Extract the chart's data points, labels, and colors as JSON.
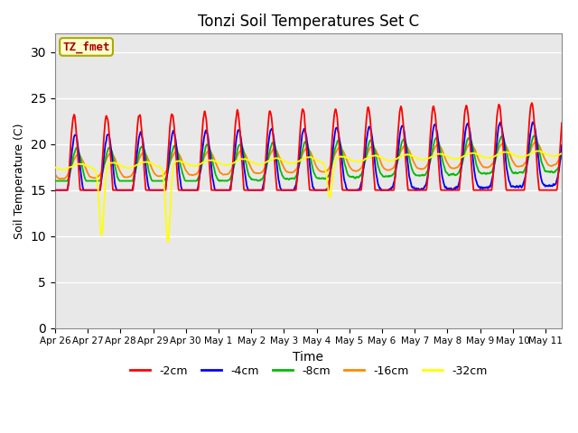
{
  "title": "Tonzi Soil Temperatures Set C",
  "xlabel": "Time",
  "ylabel": "Soil Temperature (C)",
  "ylim": [
    0,
    32
  ],
  "yticks": [
    0,
    5,
    10,
    15,
    20,
    25,
    30
  ],
  "annotation_text": "TZ_fmet",
  "annotation_color": "#aa0000",
  "annotation_bg": "#ffffcc",
  "annotation_border": "#aaaa00",
  "series_colors": {
    "-2cm": "#ff0000",
    "-4cm": "#0000ff",
    "-8cm": "#00bb00",
    "-16cm": "#ff8800",
    "-32cm": "#ffff00"
  },
  "bg_color": "#e8e8e8",
  "x_tick_labels": [
    "Apr 26",
    "Apr 27",
    "Apr 28",
    "Apr 29",
    "Apr 30",
    "May 1",
    "May 2",
    "May 3",
    "May 4",
    "May 5",
    "May 6",
    "May 7",
    "May 8",
    "May 9",
    "May 10",
    "May 11"
  ],
  "fig_width": 6.4,
  "fig_height": 4.8,
  "legend_labels": [
    "-2cm",
    "-4cm",
    "-8cm",
    "-16cm",
    "-32cm"
  ]
}
